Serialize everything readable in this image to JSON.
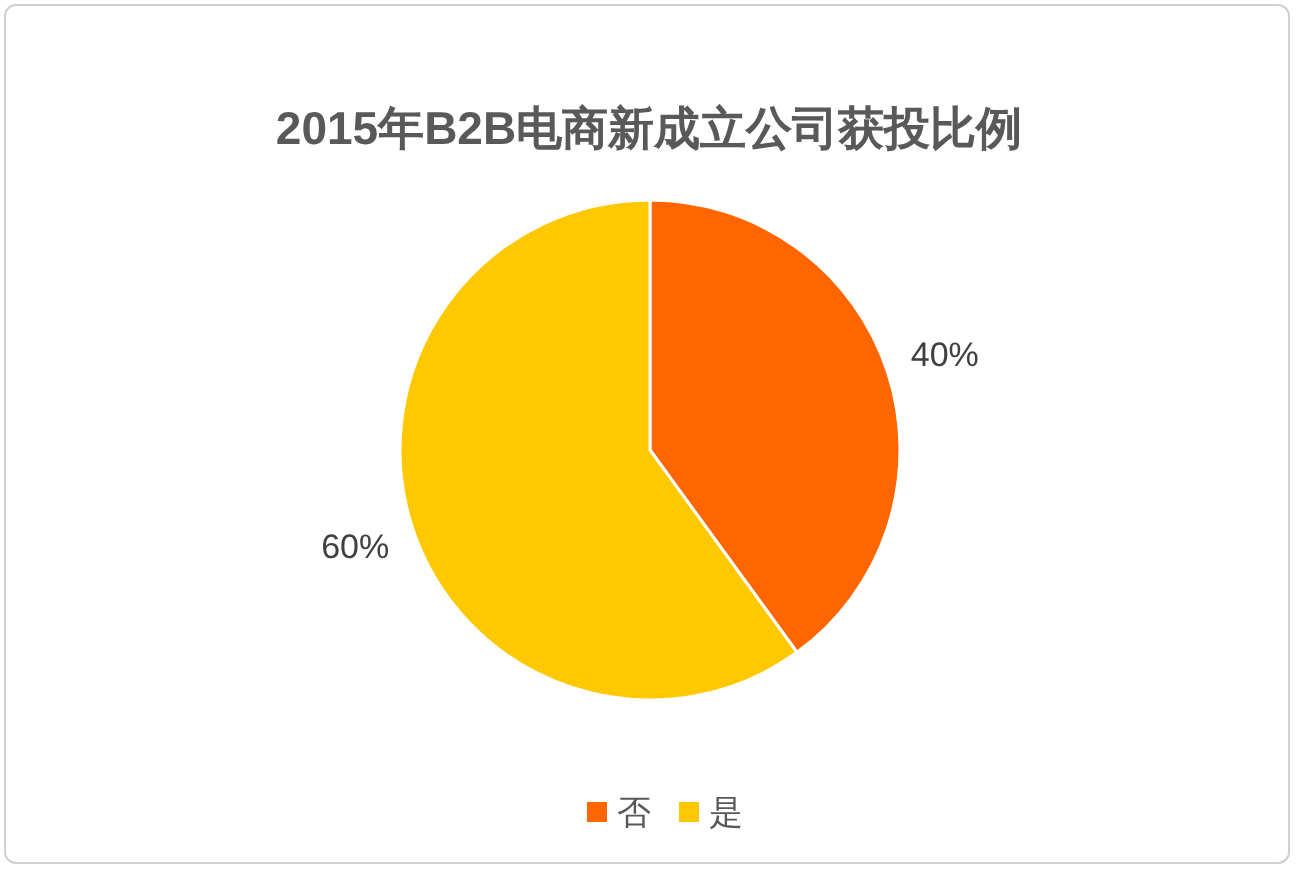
{
  "chart_data": {
    "type": "pie",
    "title": "2015年B2B电商新成立公司获投比例",
    "categories": [
      "否",
      "是"
    ],
    "values": [
      40,
      60
    ],
    "colors": [
      "#ff6600",
      "#ffc800"
    ],
    "value_labels": [
      "40%",
      "60%"
    ],
    "legend": "bottom"
  }
}
